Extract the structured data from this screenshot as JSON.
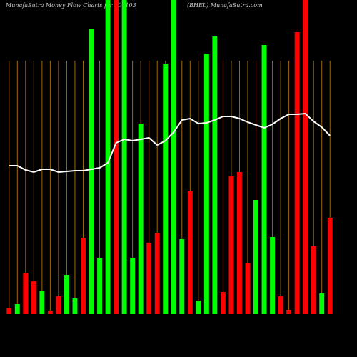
{
  "chart_data": {
    "type": "bar",
    "title": "MunafaSutra  Money Flow  Charts for 500103",
    "subtitle": "(BHEL) MunafaSutra.com",
    "categories": [
      null,
      null,
      null,
      null,
      null,
      null,
      null,
      null,
      null,
      null,
      null,
      null,
      null,
      null,
      null,
      null,
      null,
      null,
      null,
      null,
      null,
      null,
      null,
      null,
      null,
      null,
      null,
      null,
      null,
      null,
      null,
      null,
      null,
      null,
      null,
      null,
      null,
      null,
      null,
      null
    ],
    "values": [
      8,
      14,
      58,
      46,
      32,
      5,
      25,
      55,
      22,
      107,
      400,
      79,
      450,
      450,
      450,
      79,
      267,
      100,
      114,
      351,
      450,
      105,
      172,
      19,
      365,
      389,
      31,
      193,
      199,
      72,
      160,
      377,
      108,
      25,
      6,
      395,
      450,
      95,
      29,
      135
    ],
    "bar_colors": [
      "#ff0000",
      "#00ff00",
      "#ff0000",
      "#ff0000",
      "#00ff00",
      "#ff0000",
      "#ff0000",
      "#00ff00",
      "#00ff00",
      "#ff0000",
      "#00ff00",
      "#00ff00",
      "#00ff00",
      "#ff0000",
      "#00ff00",
      "#00ff00",
      "#00ff00",
      "#ff0000",
      "#ff0000",
      "#00ff00",
      "#00ff00",
      "#00ff00",
      "#ff0000",
      "#00ff00",
      "#00ff00",
      "#00ff00",
      "#ff0000",
      "#ff0000",
      "#ff0000",
      "#ff0000",
      "#00ff00",
      "#00ff00",
      "#00ff00",
      "#ff0000",
      "#ff0000",
      "#ff0000",
      "#ff0000",
      "#ff0000",
      "#00ff00",
      "#ff0000"
    ],
    "line": {
      "color": "#ffffff",
      "values": [
        208,
        208,
        202,
        199,
        203,
        203,
        199,
        200,
        201,
        201,
        203,
        205,
        212,
        240,
        245,
        243,
        245,
        247,
        237,
        243,
        255,
        272,
        274,
        267,
        268,
        272,
        277,
        277,
        274,
        269,
        265,
        261,
        266,
        274,
        280,
        280,
        281,
        270,
        262,
        250
      ]
    },
    "ylim": [
      0,
      440
    ],
    "grid": true,
    "grid_color": "#a0680a"
  }
}
